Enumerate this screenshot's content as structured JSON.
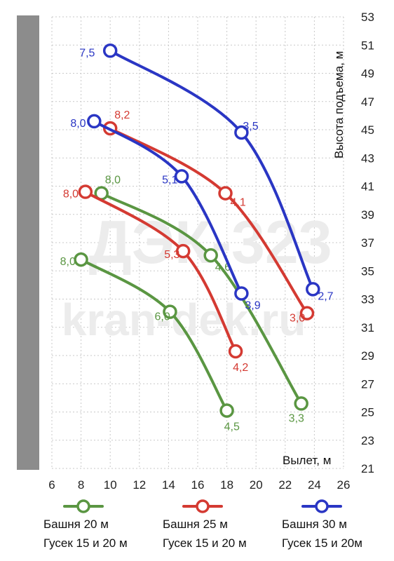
{
  "colors": {
    "green": "#5a9642",
    "red": "#d43a32",
    "blue": "#2a36c4",
    "sidebar": "#8c8c8c",
    "grid": "#c9c9c9"
  },
  "watermark": {
    "line1": "ДЭК-323",
    "line2": "kran-dek.ru"
  },
  "chart_data": {
    "type": "line",
    "xlabel": "Вылет, м",
    "ylabel": "Высота подъема, м",
    "xlim": [
      6,
      26
    ],
    "ylim": [
      21,
      53
    ],
    "x_ticks": [
      "6",
      "8",
      "10",
      "12",
      "14",
      "16",
      "18",
      "20",
      "22",
      "24",
      "26"
    ],
    "y_ticks": [
      "21",
      "23",
      "25",
      "27",
      "29",
      "31",
      "33",
      "35",
      "37",
      "39",
      "41",
      "43",
      "45",
      "47",
      "49",
      "51",
      "53"
    ],
    "grid": true,
    "series": [
      {
        "name": "Башня 20 м Гусек 15 и 20 м",
        "color": "green",
        "curves": [
          {
            "points": [
              {
                "x": 8.0,
                "y": 35.8,
                "label": "8,0"
              },
              {
                "x": 14.1,
                "y": 32.1,
                "label": "6,0"
              },
              {
                "x": 18.0,
                "y": 25.1,
                "label": "4,5"
              }
            ]
          },
          {
            "points": [
              {
                "x": 9.4,
                "y": 40.5,
                "label": "8,0"
              },
              {
                "x": 16.9,
                "y": 36.1,
                "label": "4,6"
              },
              {
                "x": 23.1,
                "y": 25.6,
                "label": "3,3"
              }
            ]
          }
        ]
      },
      {
        "name": "Башня 25 м Гусек 15 и 20 м",
        "color": "red",
        "curves": [
          {
            "points": [
              {
                "x": 8.3,
                "y": 40.6,
                "label": "8,0"
              },
              {
                "x": 15.0,
                "y": 36.4,
                "label": "5,3"
              },
              {
                "x": 18.6,
                "y": 29.3,
                "label": "4,2"
              }
            ]
          },
          {
            "points": [
              {
                "x": 10.0,
                "y": 45.1,
                "label": "8,2"
              },
              {
                "x": 17.9,
                "y": 40.5,
                "label": "4,1"
              },
              {
                "x": 23.5,
                "y": 32.0,
                "label": "3,0"
              }
            ]
          }
        ]
      },
      {
        "name": "Башня 30 м Гусек 15 и 20м",
        "color": "blue",
        "curves": [
          {
            "points": [
              {
                "x": 8.9,
                "y": 45.6,
                "label": "8,0"
              },
              {
                "x": 14.9,
                "y": 41.7,
                "label": "5,1"
              },
              {
                "x": 19.0,
                "y": 33.4,
                "label": "3,9"
              }
            ]
          },
          {
            "points": [
              {
                "x": 10.0,
                "y": 50.6,
                "label": "7,5"
              },
              {
                "x": 19.0,
                "y": 44.8,
                "label": "3,5"
              },
              {
                "x": 23.9,
                "y": 33.7,
                "label": "2,7"
              }
            ]
          }
        ]
      }
    ]
  },
  "legend": [
    {
      "color": "green",
      "line1": "Башня 20 м",
      "line2": "Гусек 15 и 20 м"
    },
    {
      "color": "red",
      "line1": "Башня 25 м",
      "line2": "Гусек 15 и 20 м"
    },
    {
      "color": "blue",
      "line1": "Башня 30 м",
      "line2": "Гусек 15 и 20м"
    }
  ]
}
